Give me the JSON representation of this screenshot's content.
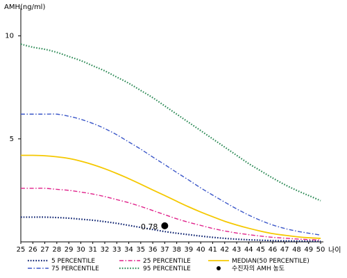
{
  "chart_data": {
    "type": "line",
    "ylabel": "AMH(ng/ml)",
    "xlabel": "나이",
    "xlim": [
      25,
      50
    ],
    "ylim": [
      0,
      11
    ],
    "x_ticks": [
      25,
      26,
      27,
      28,
      29,
      30,
      31,
      32,
      33,
      34,
      35,
      36,
      37,
      38,
      39,
      40,
      41,
      42,
      43,
      44,
      45,
      46,
      47,
      48,
      49,
      50
    ],
    "y_ticks": [
      5,
      10
    ],
    "grid": false,
    "legend_position": "bottom",
    "x": [
      25,
      26,
      27,
      28,
      29,
      30,
      31,
      32,
      33,
      34,
      35,
      36,
      37,
      38,
      39,
      40,
      41,
      42,
      43,
      44,
      45,
      46,
      47,
      48,
      49,
      50
    ],
    "series": [
      {
        "name": "5 PERCENTILE",
        "color": "#0a1f6e",
        "dash": "dotted",
        "values": [
          1.2,
          1.2,
          1.2,
          1.18,
          1.15,
          1.1,
          1.05,
          0.98,
          0.9,
          0.8,
          0.7,
          0.6,
          0.5,
          0.42,
          0.35,
          0.28,
          0.22,
          0.17,
          0.13,
          0.1,
          0.08,
          0.06,
          0.05,
          0.04,
          0.04,
          0.03
        ]
      },
      {
        "name": "25 PERCENTILE",
        "color": "#e0218a",
        "dash": "dashdot",
        "values": [
          2.6,
          2.6,
          2.6,
          2.55,
          2.5,
          2.42,
          2.32,
          2.2,
          2.05,
          1.9,
          1.72,
          1.52,
          1.32,
          1.12,
          0.95,
          0.8,
          0.65,
          0.53,
          0.43,
          0.35,
          0.28,
          0.22,
          0.18,
          0.14,
          0.11,
          0.09
        ]
      },
      {
        "name": "MEDIAN(50 PERCENTILE)",
        "color": "#f5c800",
        "dash": "solid",
        "values": [
          4.2,
          4.2,
          4.18,
          4.13,
          4.05,
          3.92,
          3.75,
          3.55,
          3.32,
          3.07,
          2.8,
          2.52,
          2.25,
          1.97,
          1.7,
          1.45,
          1.22,
          1.0,
          0.82,
          0.66,
          0.52,
          0.4,
          0.32,
          0.25,
          0.2,
          0.17
        ]
      },
      {
        "name": "75 PERCENTILE",
        "color": "#3a56c8",
        "dash": "dashdot",
        "values": [
          6.2,
          6.2,
          6.2,
          6.2,
          6.1,
          5.95,
          5.75,
          5.5,
          5.2,
          4.85,
          4.5,
          4.12,
          3.75,
          3.37,
          3.0,
          2.62,
          2.27,
          1.93,
          1.6,
          1.3,
          1.04,
          0.82,
          0.65,
          0.52,
          0.42,
          0.33
        ]
      },
      {
        "name": "95 PERCENTILE",
        "color": "#2e8b57",
        "dash": "dotted",
        "values": [
          9.6,
          9.45,
          9.35,
          9.2,
          9.0,
          8.8,
          8.55,
          8.3,
          8.0,
          7.7,
          7.35,
          7.0,
          6.6,
          6.2,
          5.8,
          5.4,
          5.0,
          4.6,
          4.2,
          3.8,
          3.45,
          3.1,
          2.78,
          2.5,
          2.25,
          2.0
        ]
      }
    ],
    "highlight_point": {
      "name": "수진자의 AMH 농도",
      "x": 37,
      "y": 0.78,
      "label": "0.78",
      "color": "#000000"
    }
  }
}
